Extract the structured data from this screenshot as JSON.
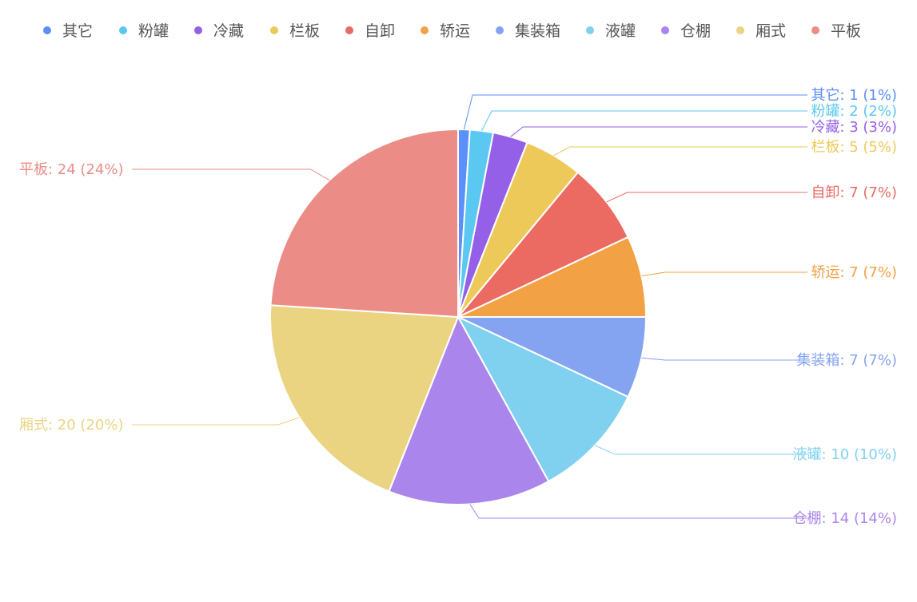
{
  "chart_data": {
    "type": "pie",
    "title": "",
    "legend_position": "top-center",
    "label_format": "{name}: {value} ({percent}%)",
    "slices": [
      {
        "name": "其它",
        "value": 1,
        "percent": 1,
        "color": "#5b8ff9"
      },
      {
        "name": "粉罐",
        "value": 2,
        "percent": 2,
        "color": "#5ac8f0"
      },
      {
        "name": "冷藏",
        "value": 3,
        "percent": 3,
        "color": "#9560e8"
      },
      {
        "name": "栏板",
        "value": 5,
        "percent": 5,
        "color": "#edc95a"
      },
      {
        "name": "自卸",
        "value": 7,
        "percent": 7,
        "color": "#eb6b63"
      },
      {
        "name": "轿运",
        "value": 7,
        "percent": 7,
        "color": "#f2a145"
      },
      {
        "name": "集装箱",
        "value": 7,
        "percent": 7,
        "color": "#84a3f0"
      },
      {
        "name": "液罐",
        "value": 10,
        "percent": 10,
        "color": "#80d1ef"
      },
      {
        "name": "仓棚",
        "value": 14,
        "percent": 14,
        "color": "#aa86ec"
      },
      {
        "name": "厢式",
        "value": 20,
        "percent": 20,
        "color": "#ead482"
      },
      {
        "name": "平板",
        "value": 24,
        "percent": 24,
        "color": "#eb8c87"
      }
    ]
  }
}
